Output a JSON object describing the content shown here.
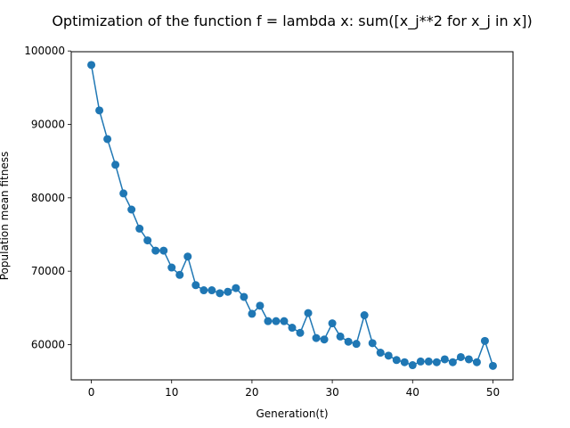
{
  "chart_data": {
    "type": "line",
    "title": "Optimization of the function     f = lambda x: sum([x_j**2 for x_j in x])",
    "xlabel": "Generation(t)",
    "ylabel": "Population mean fitness",
    "xlim": [
      -2.5,
      52.5
    ],
    "ylim": [
      55200,
      99900
    ],
    "xticks": [
      0,
      10,
      20,
      30,
      40,
      50
    ],
    "yticks": [
      60000,
      70000,
      80000,
      90000,
      100000
    ],
    "x_tick_labels": [
      "0",
      "10",
      "20",
      "30",
      "40",
      "50"
    ],
    "y_tick_labels": [
      "60000",
      "70000",
      "80000",
      "90000",
      "100000"
    ],
    "grid": false,
    "color": "#1f77b4",
    "series": [
      {
        "x": [
          0,
          1,
          2,
          3,
          4,
          5,
          6,
          7,
          8,
          9,
          10,
          11,
          12,
          13,
          14,
          15,
          16,
          17,
          18,
          19,
          20,
          21,
          22,
          23,
          24,
          25,
          26,
          27,
          28,
          29,
          30,
          31,
          32,
          33,
          34,
          35,
          36,
          37,
          38,
          39,
          40,
          41,
          42,
          43,
          44,
          45,
          46,
          47,
          48,
          49,
          50
        ],
        "values": [
          98100,
          91900,
          88000,
          84500,
          80600,
          78400,
          75800,
          74200,
          72800,
          72800,
          70500,
          69500,
          72000,
          68100,
          67400,
          67400,
          67000,
          67200,
          67700,
          66500,
          64200,
          65300,
          63200,
          63200,
          63200,
          62300,
          61600,
          64300,
          60900,
          60700,
          62900,
          61100,
          60400,
          60100,
          64000,
          60200,
          58900,
          58500,
          57900,
          57600,
          57200,
          57700,
          57700,
          57600,
          58000,
          57600,
          58300,
          58000,
          57600,
          60500,
          57100
        ]
      }
    ]
  }
}
